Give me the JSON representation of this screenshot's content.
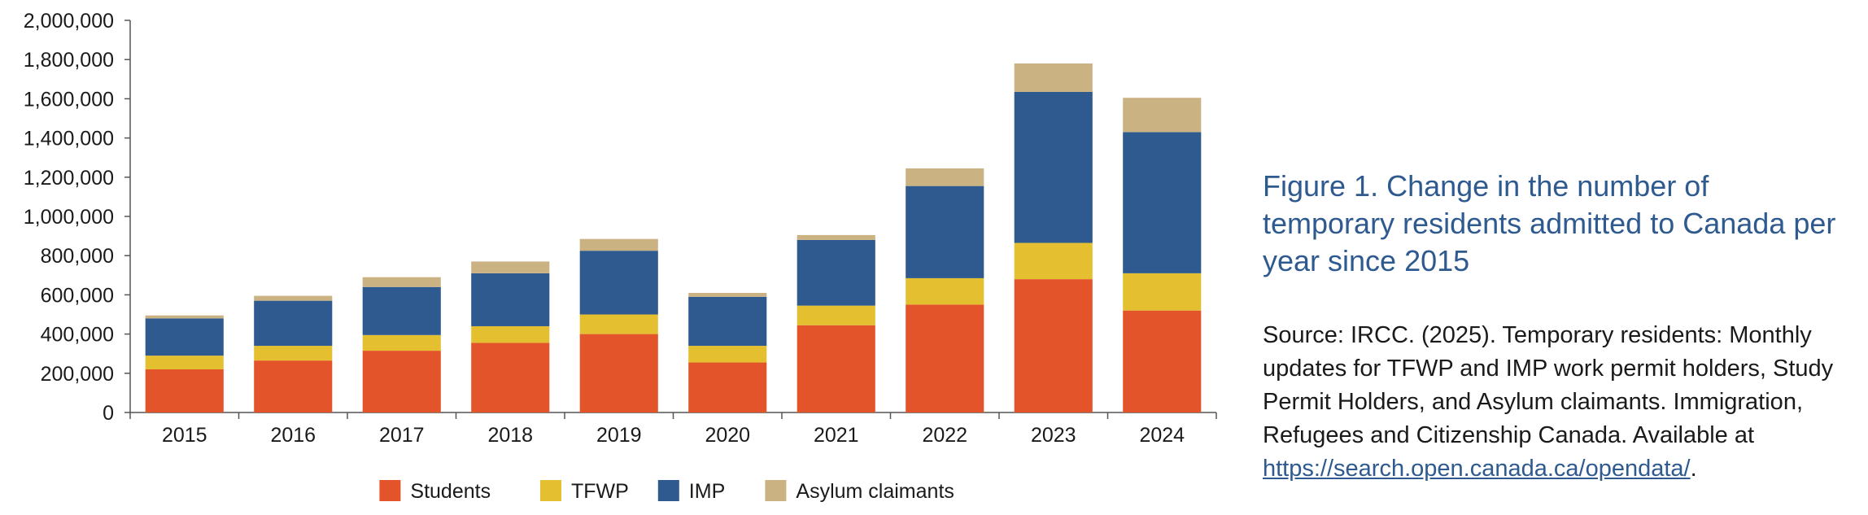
{
  "chart_data": {
    "type": "bar",
    "stacked": true,
    "categories": [
      "2015",
      "2016",
      "2017",
      "2018",
      "2019",
      "2020",
      "2021",
      "2022",
      "2023",
      "2024"
    ],
    "series": [
      {
        "name": "Students",
        "color": "#e4542a",
        "values": [
          220000,
          265000,
          315000,
          355000,
          400000,
          255000,
          445000,
          550000,
          680000,
          520000
        ]
      },
      {
        "name": "TFWP",
        "color": "#e4bf2f",
        "values": [
          70000,
          75000,
          80000,
          85000,
          100000,
          85000,
          100000,
          135000,
          185000,
          190000
        ]
      },
      {
        "name": "IMP",
        "color": "#2e5a8f",
        "values": [
          190000,
          230000,
          245000,
          270000,
          325000,
          250000,
          335000,
          470000,
          770000,
          720000
        ]
      },
      {
        "name": "Asylum claimants",
        "color": "#cbb282",
        "values": [
          15000,
          25000,
          50000,
          60000,
          60000,
          20000,
          25000,
          90000,
          145000,
          175000
        ]
      }
    ],
    "yticks": [
      "0",
      "200,000",
      "400,000",
      "600,000",
      "800,000",
      "1,000,000",
      "1,200,000",
      "1,400,000",
      "1,600,000",
      "1,800,000",
      "2,000,000"
    ],
    "ylim": [
      0,
      2000000
    ],
    "legend_position": "bottom-center",
    "title": "",
    "xlabel": "",
    "ylabel": ""
  },
  "caption": {
    "title": "Figure 1. Change in the number of temporary residents admitted to Canada per year since 2015",
    "source_text": "Source: IRCC. (2025). Temporary residents: Monthly updates for TFWP and IMP work permit holders, Study Permit Holders, and Asylum claimants. Immigration, Refugees and Citizenship Canada. Available at ",
    "source_link": "https://search.open.canada.ca/opendata/",
    "source_end": "."
  }
}
